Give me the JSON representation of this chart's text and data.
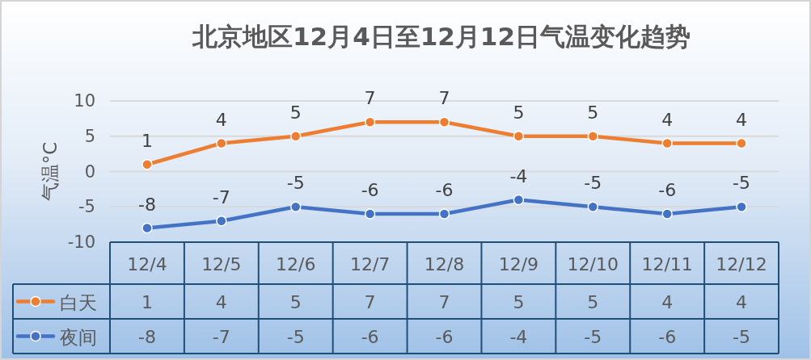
{
  "chart_data": {
    "type": "line",
    "title": "北京地区12月4日至12月12日气温变化趋势",
    "ylabel": "气温°C",
    "categories": [
      "12/4",
      "12/5",
      "12/6",
      "12/7",
      "12/8",
      "12/9",
      "12/10",
      "12/11",
      "12/12"
    ],
    "series": [
      {
        "name": "白天",
        "color": "#ed7d31",
        "values": [
          1,
          4,
          5,
          7,
          7,
          5,
          5,
          4,
          4
        ]
      },
      {
        "name": "夜间",
        "color": "#4472c4",
        "values": [
          -8,
          -7,
          -5,
          -6,
          -6,
          -4,
          -5,
          -6,
          -5
        ]
      }
    ],
    "annotations": [
      {
        "text": "1",
        "x": "12/4",
        "y": 1
      },
      {
        "text": "4",
        "x": "12/5",
        "y": 4
      },
      {
        "text": "5",
        "x": "12/6",
        "y": 5
      },
      {
        "text": "7",
        "x": "12/7",
        "y": 7
      },
      {
        "text": "7",
        "x": "12/8",
        "y": 7
      },
      {
        "text": "5",
        "x": "12/9",
        "y": 5
      },
      {
        "text": "5",
        "x": "12/10",
        "y": 5
      },
      {
        "text": "4",
        "x": "12/11",
        "y": 4
      },
      {
        "text": "4",
        "x": "12/12",
        "y": 4
      },
      {
        "text": "-8",
        "x": "12/4",
        "y": -8
      },
      {
        "text": "-7",
        "x": "12/5",
        "y": -7
      },
      {
        "text": "-5",
        "x": "12/6",
        "y": -5
      },
      {
        "text": "-6",
        "x": "12/7",
        "y": -6
      },
      {
        "text": "-6",
        "x": "12/8",
        "y": -6
      },
      {
        "text": "-4",
        "x": "12/9",
        "y": -4
      },
      {
        "text": "-5",
        "x": "12/10",
        "y": -5
      },
      {
        "text": "-6",
        "x": "12/11",
        "y": -6
      },
      {
        "text": "-5",
        "x": "12/12",
        "y": -5
      }
    ],
    "ylim": [
      -10,
      10
    ],
    "yticks": [
      -10,
      -5,
      0,
      5,
      10
    ],
    "grid": "y",
    "legend": "bottom left",
    "marker": "circle",
    "line_style": "solid",
    "data_labels": true
  }
}
